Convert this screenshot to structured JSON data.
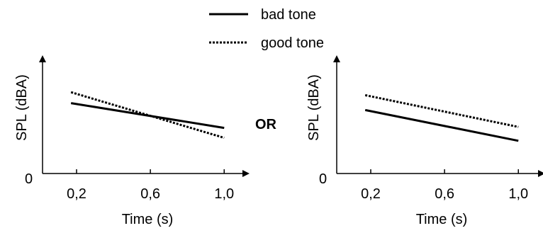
{
  "legend": {
    "items": [
      {
        "label": "bad tone",
        "style": "solid"
      },
      {
        "label": "good tone",
        "style": "dotted"
      }
    ]
  },
  "separator": "OR",
  "chart_data": [
    {
      "type": "line",
      "xlabel": "Time (s)",
      "ylabel": "SPL (dBA)",
      "xticks": [
        "0,2",
        "0,6",
        "1,0"
      ],
      "xtick_values": [
        0.2,
        0.6,
        1.0
      ],
      "yticks": [
        "0"
      ],
      "xlim": [
        0,
        1.2
      ],
      "ylim": [
        0,
        1
      ],
      "series": [
        {
          "name": "bad tone",
          "style": "solid",
          "x": [
            0.17,
            1.0
          ],
          "y": [
            0.71,
            0.46
          ]
        },
        {
          "name": "good tone",
          "style": "dotted",
          "x": [
            0.17,
            1.0
          ],
          "y": [
            0.82,
            0.36
          ]
        }
      ]
    },
    {
      "type": "line",
      "xlabel": "Time (s)",
      "ylabel": "SPL (dBA)",
      "xticks": [
        "0,2",
        "0,6",
        "1,0"
      ],
      "xtick_values": [
        0.2,
        0.6,
        1.0
      ],
      "yticks": [
        "0"
      ],
      "xlim": [
        0,
        1.2
      ],
      "ylim": [
        0,
        1
      ],
      "series": [
        {
          "name": "bad tone",
          "style": "solid",
          "x": [
            0.17,
            1.0
          ],
          "y": [
            0.64,
            0.33
          ]
        },
        {
          "name": "good tone",
          "style": "dotted",
          "x": [
            0.17,
            1.0
          ],
          "y": [
            0.79,
            0.47
          ]
        }
      ]
    }
  ]
}
